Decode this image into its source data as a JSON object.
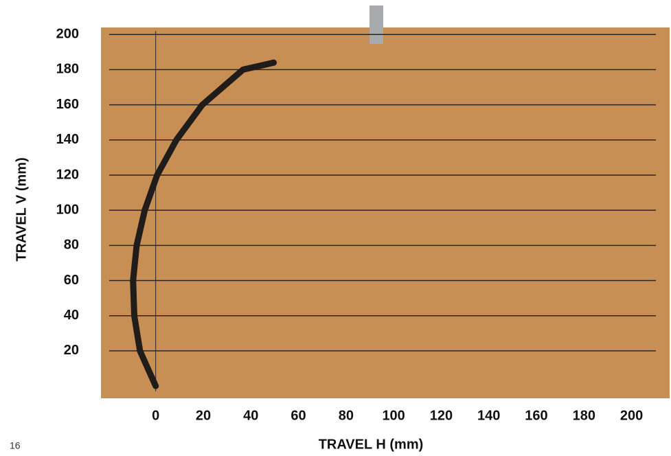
{
  "chart_data": {
    "type": "line",
    "x_label": "TRAVEL H (mm)",
    "y_label": "TRAVEL V (mm)",
    "page_number": "16",
    "series": [
      {
        "color": "#1f1c1a",
        "x": [
          0,
          -6.6,
          -9,
          -9.5,
          -8,
          -4.6,
          0.6,
          8.7,
          19.6,
          36.7,
          49.6
        ],
        "values": [
          0,
          20,
          40,
          60,
          80,
          100,
          120,
          140,
          160,
          180,
          184
        ]
      }
    ],
    "xlim": [
      -23,
      216
    ],
    "ylim": [
      -7,
      204
    ],
    "xticks": [
      0,
      20,
      40,
      60,
      80,
      100,
      120,
      140,
      160,
      180,
      200
    ],
    "yticks": [
      20,
      40,
      60,
      80,
      100,
      120,
      140,
      160,
      180,
      200
    ],
    "grid": true,
    "board_color": "#c88f55"
  }
}
